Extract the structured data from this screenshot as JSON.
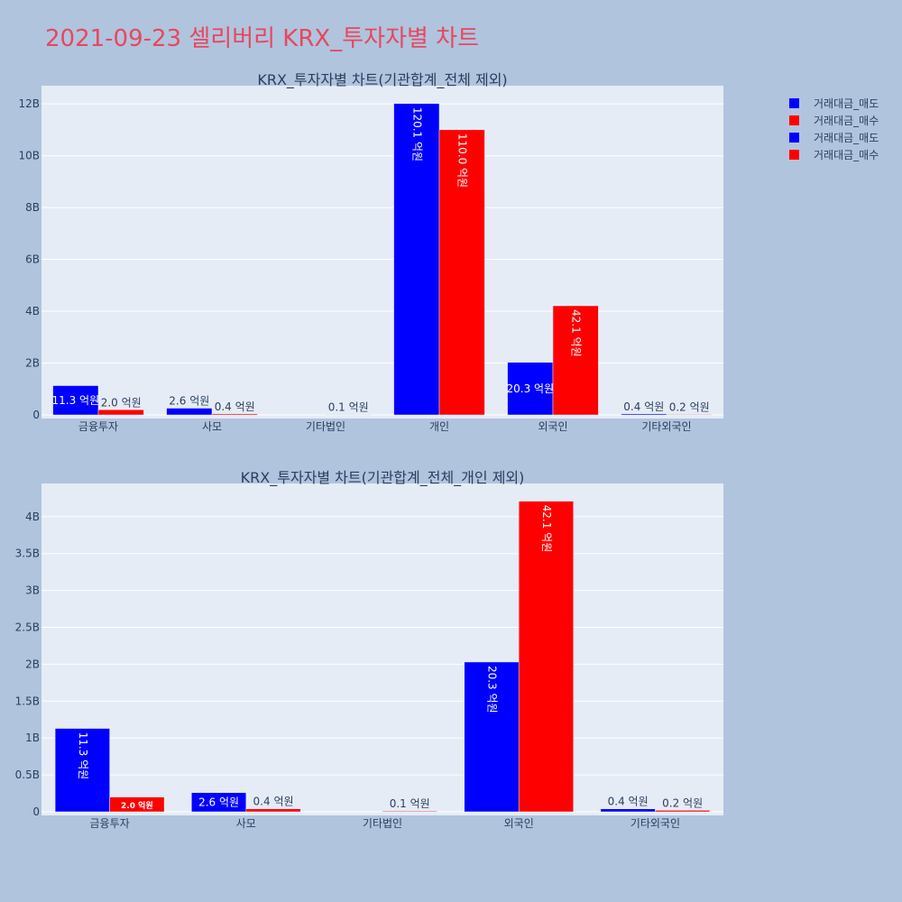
{
  "page": {
    "title": "2021-09-23 셀리버리 KRX_투자자별 차트"
  },
  "colors": {
    "sell": "#0000ff",
    "buy": "#ff0000",
    "plot_bg": "#e5ecf6",
    "page_bg": "#b0c4de"
  },
  "legend": {
    "items": [
      {
        "label": "거래대금_매도",
        "color": "#0000ff"
      },
      {
        "label": "거래대금_매수",
        "color": "#ff0000"
      },
      {
        "label": "거래대금_매도",
        "color": "#0000ff"
      },
      {
        "label": "거래대금_매수",
        "color": "#ff0000"
      }
    ]
  },
  "chart_data": [
    {
      "type": "bar",
      "title": "KRX_투자자별 차트(기관합계_전체 제외)",
      "categories": [
        "금융투자",
        "사모",
        "기타법인",
        "개인",
        "외국인",
        "기타외국인"
      ],
      "series": [
        {
          "name": "거래대금_매도",
          "values": [
            1130000000,
            260000000,
            0,
            12010000000,
            2030000000,
            40000000
          ],
          "labels": [
            "11.3 억원",
            "2.6 억원",
            "",
            "120.1 억원",
            "20.3 억원",
            "0.4 억원"
          ]
        },
        {
          "name": "거래대금_매수",
          "values": [
            200000000,
            40000000,
            10000000,
            11000000000,
            4210000000,
            20000000
          ],
          "labels": [
            "2.0 억원",
            "0.4 억원",
            "0.1 억원",
            "110.0 억원",
            "42.1 억원",
            "0.2 억원"
          ]
        }
      ],
      "ylim": [
        0,
        12700000000
      ],
      "yticks": [
        0,
        2000000000,
        4000000000,
        6000000000,
        8000000000,
        10000000000,
        12000000000
      ],
      "yticklabels": [
        "0",
        "2B",
        "4B",
        "6B",
        "8B",
        "10B",
        "12B"
      ],
      "grid": true
    },
    {
      "type": "bar",
      "title": "KRX_투자자별 차트(기관합계_전체_개인 제외)",
      "categories": [
        "금융투자",
        "사모",
        "기타법인",
        "외국인",
        "기타외국인"
      ],
      "series": [
        {
          "name": "거래대금_매도",
          "values": [
            1130000000,
            260000000,
            0,
            2030000000,
            40000000
          ],
          "labels": [
            "11.3 억원",
            "2.6 억원",
            "",
            "20.3 억원",
            "0.4 억원"
          ]
        },
        {
          "name": "거래대금_매수",
          "values": [
            200000000,
            40000000,
            10000000,
            4210000000,
            20000000
          ],
          "labels": [
            "2.0 억원",
            "0.4 억원",
            "0.1 억원",
            "42.1 억원",
            "0.2 억원"
          ]
        }
      ],
      "ylim": [
        0,
        4450000000
      ],
      "yticks": [
        0,
        500000000,
        1000000000,
        1500000000,
        2000000000,
        2500000000,
        3000000000,
        3500000000,
        4000000000
      ],
      "yticklabels": [
        "0",
        "0.5B",
        "1B",
        "1.5B",
        "2B",
        "2.5B",
        "3B",
        "3.5B",
        "4B"
      ],
      "grid": true
    }
  ]
}
